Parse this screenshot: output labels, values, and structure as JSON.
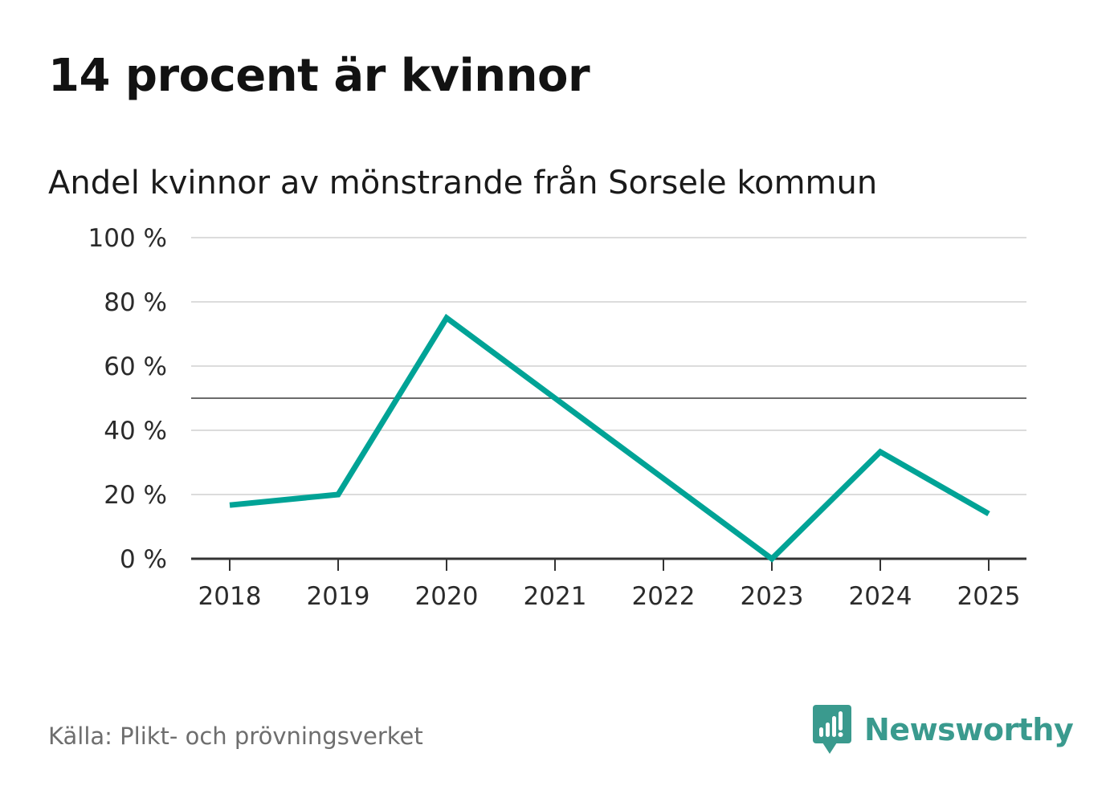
{
  "title": "14 procent är kvinnor",
  "source": "Källa: Plikt- och prövningsverket",
  "brand": {
    "name": "Newsworthy",
    "icon": "newsworthy-logo-icon",
    "color": "#3a9a8e"
  },
  "chart_data": {
    "type": "line",
    "title": "Andel kvinnor av mönstrande från Sorsele kommun",
    "xlabel": "",
    "ylabel": "",
    "categories": [
      "2018",
      "2019",
      "2020",
      "2021",
      "2022",
      "2023",
      "2024",
      "2025"
    ],
    "series": [
      {
        "name": "Andel kvinnor",
        "values": [
          16.7,
          20,
          75,
          50,
          25,
          0,
          33.3,
          14
        ],
        "color": "#00a396"
      }
    ],
    "ylim": [
      0,
      100
    ],
    "yticks": [
      0,
      20,
      40,
      60,
      80,
      100
    ],
    "ytick_labels": [
      "0 %",
      "20 %",
      "40 %",
      "60 %",
      "80 %",
      "100 %"
    ],
    "reference_line": 50,
    "grid": true,
    "legend": "none"
  }
}
